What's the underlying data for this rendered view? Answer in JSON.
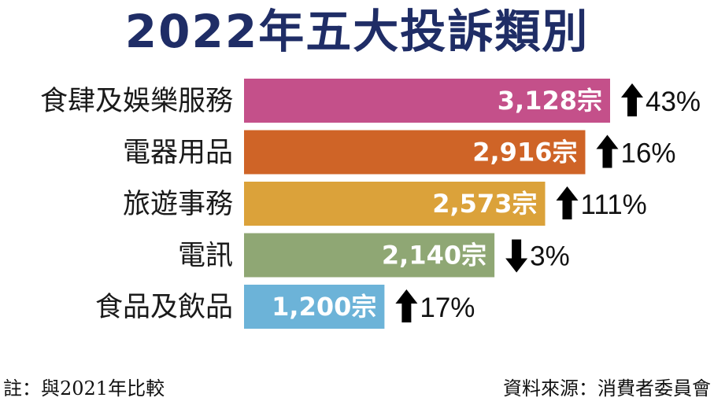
{
  "chart_data": {
    "type": "bar",
    "orientation": "horizontal",
    "title": "2022年五大投訴類別",
    "categories": [
      "食肆及娛樂服務",
      "電器用品",
      "旅遊事務",
      "電訊",
      "食品及飲品"
    ],
    "values": [
      3128,
      2916,
      2573,
      2140,
      1200
    ],
    "value_labels": [
      "3,128宗",
      "2,916宗",
      "2,573宗",
      "2,140宗",
      "1,200宗"
    ],
    "changes": [
      {
        "direction": "up",
        "label": "43%"
      },
      {
        "direction": "up",
        "label": "16%"
      },
      {
        "direction": "up",
        "label": "111%"
      },
      {
        "direction": "down",
        "label": "3%"
      },
      {
        "direction": "up",
        "label": "17%"
      }
    ],
    "colors": [
      "#c4508a",
      "#cf6427",
      "#dba23a",
      "#8fa774",
      "#6cb3d8"
    ],
    "xlim": [
      0,
      3128
    ]
  },
  "footnote": {
    "left": "註：與2021年比較",
    "right": "資料來源：消費者委員會"
  }
}
